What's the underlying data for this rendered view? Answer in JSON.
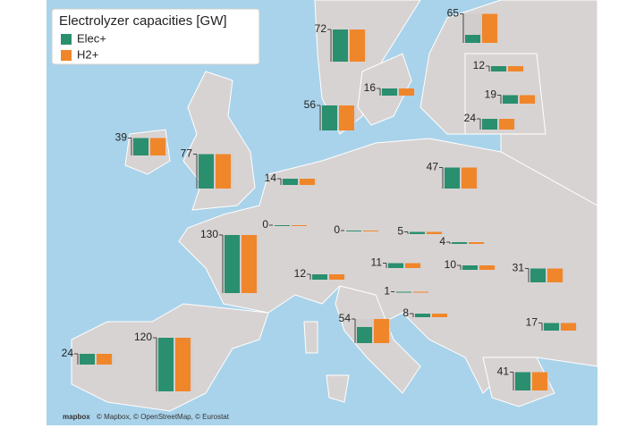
{
  "legend": {
    "title": "Electrolyzer capacities [GW]",
    "items": [
      {
        "name": "Elec+",
        "color": "#2a8f6e"
      },
      {
        "name": "H2+",
        "color": "#f0862a"
      }
    ]
  },
  "regions": [
    {
      "label": 72,
      "elec": 72,
      "h2": 72
    },
    {
      "label": 65,
      "elec": 18,
      "h2": 65
    },
    {
      "label": 12,
      "elec": 12,
      "h2": 12
    },
    {
      "label": 16,
      "elec": 16,
      "h2": 16
    },
    {
      "label": 19,
      "elec": 19,
      "h2": 19
    },
    {
      "label": 24,
      "elec": 24,
      "h2": 24
    },
    {
      "label": 56,
      "elec": 56,
      "h2": 56
    },
    {
      "label": 39,
      "elec": 39,
      "h2": 39
    },
    {
      "label": 77,
      "elec": 77,
      "h2": 77
    },
    {
      "label": 47,
      "elec": 47,
      "h2": 47
    },
    {
      "label": 14,
      "elec": 14,
      "h2": 14
    },
    {
      "label": 0,
      "elec": 0,
      "h2": 0
    },
    {
      "label": 0,
      "elec": 0,
      "h2": 0
    },
    {
      "label": 5,
      "elec": 5,
      "h2": 5
    },
    {
      "label": 4,
      "elec": 4,
      "h2": 4
    },
    {
      "label": 130,
      "elec": 130,
      "h2": 130
    },
    {
      "label": 11,
      "elec": 11,
      "h2": 11
    },
    {
      "label": 10,
      "elec": 10,
      "h2": 10
    },
    {
      "label": 31,
      "elec": 31,
      "h2": 31
    },
    {
      "label": 12,
      "elec": 12,
      "h2": 12
    },
    {
      "label": 1,
      "elec": 1,
      "h2": 1
    },
    {
      "label": 8,
      "elec": 8,
      "h2": 8
    },
    {
      "label": 54,
      "elec": 36,
      "h2": 54
    },
    {
      "label": 17,
      "elec": 17,
      "h2": 17
    },
    {
      "label": 120,
      "elec": 120,
      "h2": 120
    },
    {
      "label": 24,
      "elec": 24,
      "h2": 24
    },
    {
      "label": 41,
      "elec": 41,
      "h2": 41
    }
  ],
  "logo": "mapbox",
  "attribution": "© Mapbox, © OpenStreetMap, © Eurostat"
}
